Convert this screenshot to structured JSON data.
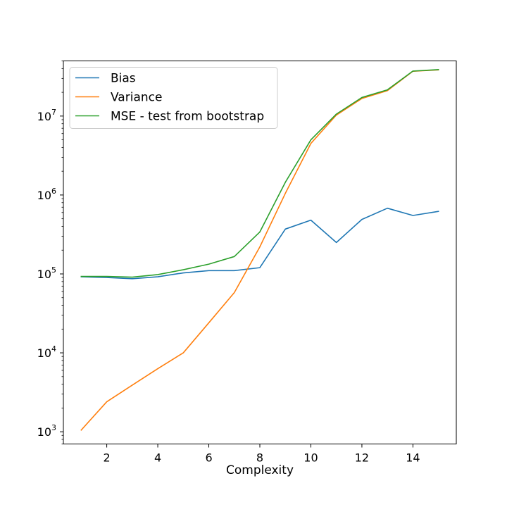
{
  "chart_data": {
    "type": "line",
    "title": "",
    "xlabel": "Complexity",
    "ylabel": "",
    "yscale": "log",
    "xlim": [
      0.3,
      15.7
    ],
    "ylim": [
      700,
      50000000
    ],
    "grid": false,
    "legend_position": "top-left",
    "x": [
      1,
      2,
      3,
      4,
      5,
      6,
      7,
      8,
      9,
      10,
      11,
      12,
      13,
      14,
      15
    ],
    "x_ticks": [
      {
        "value": 2,
        "label": "2"
      },
      {
        "value": 4,
        "label": "4"
      },
      {
        "value": 6,
        "label": "6"
      },
      {
        "value": 8,
        "label": "8"
      },
      {
        "value": 10,
        "label": "10"
      },
      {
        "value": 12,
        "label": "12"
      },
      {
        "value": 14,
        "label": "14"
      }
    ],
    "y_ticks": [
      {
        "value": 1000,
        "base": "10",
        "exp": "3"
      },
      {
        "value": 10000,
        "base": "10",
        "exp": "4"
      },
      {
        "value": 100000,
        "base": "10",
        "exp": "5"
      },
      {
        "value": 1000000,
        "base": "10",
        "exp": "6"
      },
      {
        "value": 10000000,
        "base": "10",
        "exp": "7"
      }
    ],
    "series": [
      {
        "name": "Bias",
        "color": "#1f77b4",
        "values": [
          92000,
          90000,
          87000,
          92000,
          103000,
          110000,
          110000,
          120000,
          370000,
          480000,
          250000,
          490000,
          680000,
          550000,
          620000
        ]
      },
      {
        "name": "Variance",
        "color": "#ff7f0e",
        "values": [
          1050,
          2400,
          3900,
          6300,
          10000,
          24000,
          58000,
          220000,
          1050000,
          4500000,
          10300000,
          16700000,
          21000000,
          37000000,
          38500000
        ]
      },
      {
        "name": "MSE - test from bootstrap",
        "color": "#2ca02c",
        "values": [
          93000,
          93000,
          91000,
          98000,
          113000,
          133000,
          166000,
          340000,
          1450000,
          5000000,
          10600000,
          17200000,
          21500000,
          37200000,
          38800000
        ]
      }
    ]
  }
}
